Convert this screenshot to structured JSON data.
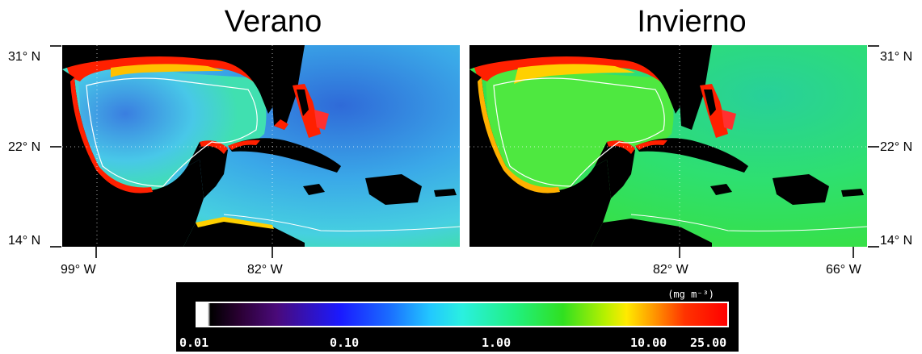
{
  "panels": [
    {
      "title": "Verano"
    },
    {
      "title": "Invierno"
    }
  ],
  "latitude_labels": [
    "31° N",
    "22° N",
    "14° N"
  ],
  "longitude_labels": {
    "left": [
      "99° W",
      "82° W"
    ],
    "right": [
      "82° W",
      "66° W"
    ]
  },
  "colorbar": {
    "unit": "(mg m⁻³)",
    "ticks": [
      "0.01",
      "0.10",
      "1.00",
      "10.00",
      "25.00"
    ]
  },
  "colors": {
    "land": "#000000",
    "ocean_summer": "#3aa8e8",
    "ocean_winter": "#2ee066",
    "coastal_high": "#ff2000",
    "coastal_mid": "#ffd000",
    "contour": "#ffffff"
  }
}
